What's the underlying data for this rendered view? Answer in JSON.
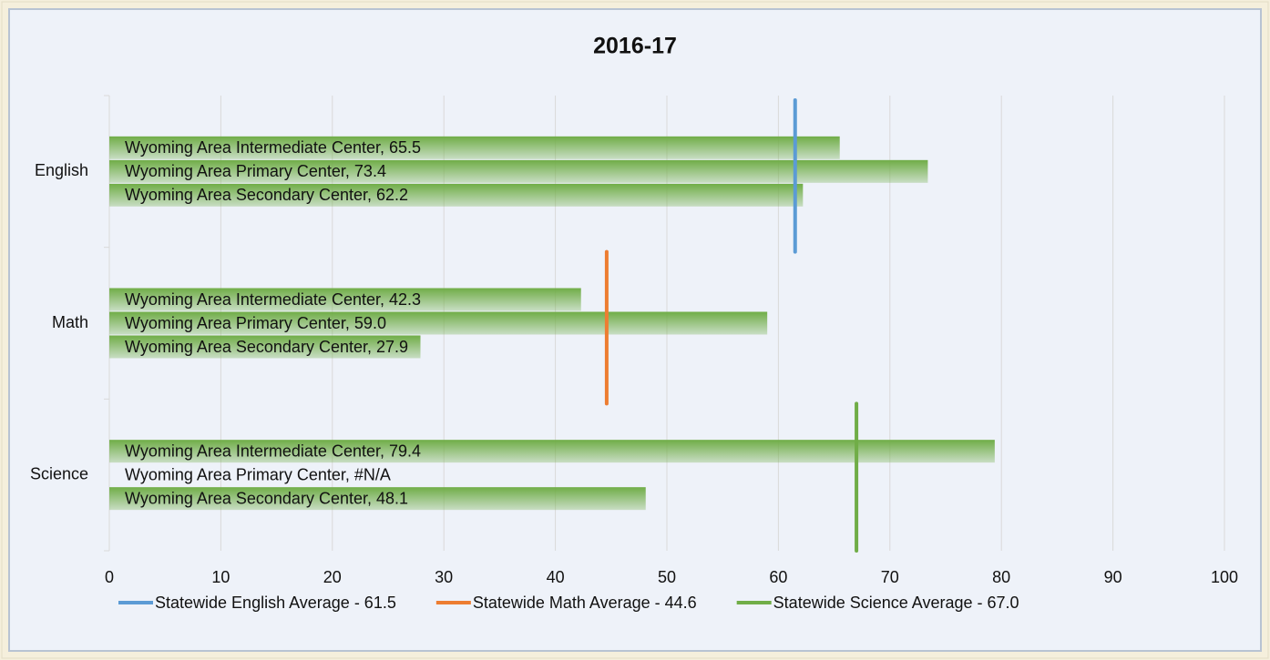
{
  "chart_data": {
    "type": "bar",
    "orientation": "horizontal",
    "title": "2016-17",
    "categories": [
      "English",
      "Math",
      "Science"
    ],
    "color": "#70ad47",
    "series": [
      {
        "values": [
          65.5,
          42.3,
          79.4
        ],
        "value_labels": [
          "Wyoming Area Intermediate Center, 65.5",
          "Wyoming Area Intermediate Center, 42.3",
          "Wyoming Area Intermediate Center, 79.4"
        ]
      },
      {
        "values": [
          73.4,
          59.0,
          null
        ],
        "value_labels": [
          "Wyoming Area Primary Center, 73.4",
          "Wyoming Area Primary Center, 59.0",
          "Wyoming Area Primary Center, #N/A"
        ]
      },
      {
        "values": [
          62.2,
          27.9,
          48.1
        ],
        "value_labels": [
          "Wyoming Area Secondary Center, 62.2",
          "Wyoming Area Secondary Center, 27.9",
          "Wyoming Area Secondary Center, 48.1"
        ]
      }
    ],
    "reference_lines": [
      {
        "name": "Statewide English Average - 61.5",
        "value": 61.5,
        "color": "#5b9bd5"
      },
      {
        "name": "Statewide Math Average - 44.6",
        "value": 44.6,
        "color": "#ed7d31"
      },
      {
        "name": "Statewide Science Average - 67.0",
        "value": 67.0,
        "color": "#70ad47"
      }
    ],
    "xlim": [
      0,
      100
    ],
    "xticks": [
      0,
      10,
      20,
      30,
      40,
      50,
      60,
      70,
      80,
      90,
      100
    ],
    "grid": true,
    "legend": "bottom"
  }
}
